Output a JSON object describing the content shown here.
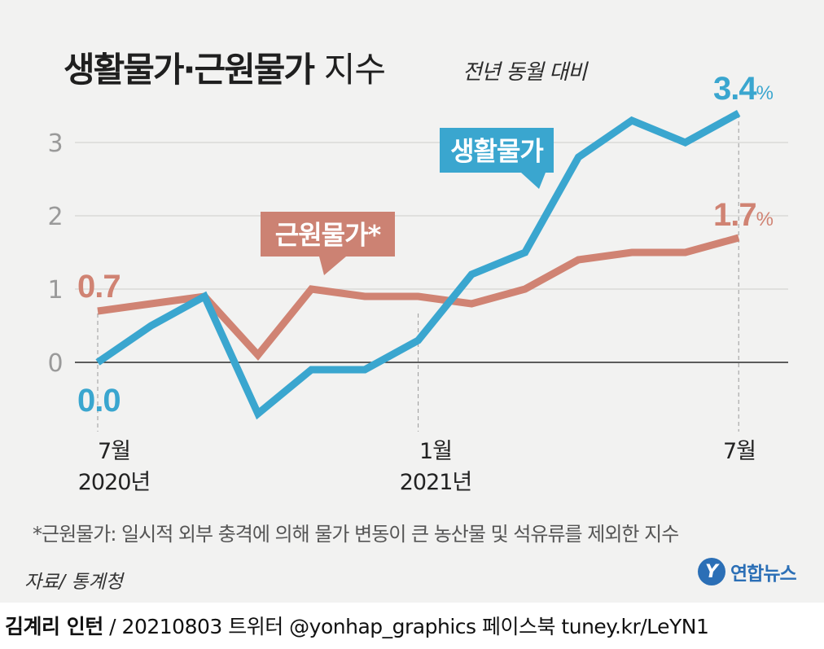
{
  "chart_data": {
    "type": "line",
    "title": "생활물가·근원물가",
    "title_suffix": "지수",
    "subtitle": "전년 동월 대비",
    "ylim": [
      -1,
      3.5
    ],
    "yticks": [
      "0",
      "1",
      "2",
      "3"
    ],
    "x": [
      "2020-07",
      "2020-08",
      "2020-09",
      "2020-10",
      "2020-11",
      "2020-12",
      "2021-01",
      "2021-02",
      "2021-03",
      "2021-04",
      "2021-05",
      "2021-06",
      "2021-07"
    ],
    "x_tick_labels": [
      {
        "index": 0,
        "line1": "7월",
        "line2": "2020년"
      },
      {
        "index": 6,
        "line1": "1월",
        "line2": "2021년"
      },
      {
        "index": 12,
        "line1": "7월",
        "line2": ""
      }
    ],
    "series": [
      {
        "name": "생활물가",
        "color": "#3aa6cf",
        "values": [
          0.0,
          0.5,
          0.9,
          -0.7,
          -0.1,
          -0.1,
          0.3,
          1.2,
          1.5,
          2.8,
          3.3,
          3.0,
          3.4
        ]
      },
      {
        "name": "근원물가*",
        "color": "#d08373",
        "values": [
          0.7,
          0.8,
          0.9,
          0.1,
          1.0,
          0.9,
          0.9,
          0.8,
          1.0,
          1.4,
          1.5,
          1.5,
          1.7
        ]
      }
    ],
    "annotations": {
      "blue_start": "0.0",
      "blue_end": "3.4",
      "orange_start": "0.7",
      "orange_end": "1.7",
      "unit": "%"
    },
    "grid": true
  },
  "footnote": "*근원물가: 일시적 외부 충격에 의해 물가 변동이 큰 농산물 및 석유류를 제외한 지수",
  "source": "자료/ 통계청",
  "logo": {
    "mark": "Y",
    "text": "연합뉴스"
  },
  "credit": {
    "author": "김계리 인턴",
    "rest": " / 20210803 트위터 @yonhap_graphics  페이스북 tuney.kr/LeYN1"
  },
  "colors": {
    "panel": "#f2f2f1",
    "blue": "#3aa6cf",
    "orange": "#d08373",
    "blue_label_bg": "#3aa6cf",
    "orange_label_bg": "#cc8273"
  }
}
